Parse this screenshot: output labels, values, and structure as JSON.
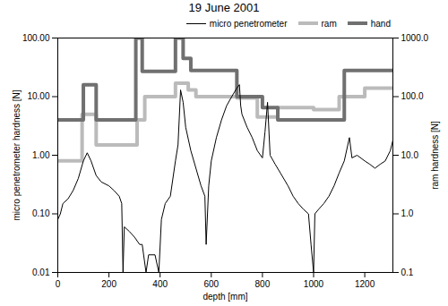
{
  "chart_data": {
    "type": "line",
    "title": "19 June 2001",
    "x_label": "depth [mm]",
    "y_label": "micro penetrometer hardness [N]",
    "y2_label": "ram hardness [N]",
    "log": true,
    "legend": "top right",
    "xlim": [
      0,
      1310
    ],
    "xticks": [
      0,
      200,
      400,
      600,
      800,
      1000,
      1200
    ],
    "ylim": [
      0.01,
      100
    ],
    "yticks": [
      {
        "value": 0.01,
        "label": "0.01"
      },
      {
        "value": 0.1,
        "label": "0.10"
      },
      {
        "value": 1,
        "label": "1.00"
      },
      {
        "value": 10,
        "label": "10.00"
      },
      {
        "value": 100,
        "label": "100.00"
      }
    ],
    "y2lim": [
      0.1,
      1000
    ],
    "y2ticks": [
      0.1,
      {
        "value": 1,
        "label": "1.0"
      },
      {
        "value": 10,
        "label": "10.0"
      },
      {
        "value": 100,
        "label": "100.0"
      },
      {
        "value": 1000,
        "label": "1000.0"
      }
    ],
    "series": [
      {
        "name": "micro penetrometer",
        "color": "#000000",
        "type": "line",
        "line_style": "solid",
        "x": [
          0,
          10,
          20,
          40,
          60,
          80,
          100,
          115,
          130,
          150,
          170,
          200,
          220,
          240,
          250,
          255,
          260,
          280,
          300,
          320,
          330,
          345,
          355,
          380,
          395,
          405,
          420,
          440,
          460,
          470,
          480,
          490,
          500,
          520,
          540,
          560,
          575,
          580,
          590,
          600,
          620,
          640,
          660,
          680,
          700,
          710,
          715,
          720,
          740,
          760,
          780,
          800,
          810,
          820,
          830,
          850,
          870,
          900,
          920,
          940,
          960,
          980,
          990,
          1000,
          1005,
          1020,
          1040,
          1060,
          1080,
          1100,
          1120,
          1140,
          1150,
          1170,
          1200,
          1220,
          1240,
          1260,
          1280,
          1300,
          1310
        ],
        "values": [
          0.08,
          0.1,
          0.15,
          0.18,
          0.25,
          0.4,
          0.8,
          1.1,
          0.8,
          0.45,
          0.35,
          0.3,
          0.25,
          0.2,
          0.15,
          0.01,
          0.06,
          0.05,
          0.04,
          0.03,
          0.03,
          0.01,
          0.02,
          0.02,
          0.01,
          0.08,
          0.15,
          0.2,
          0.8,
          1.5,
          13,
          8,
          3,
          1.2,
          0.6,
          0.3,
          0.2,
          0.03,
          0.3,
          0.8,
          2,
          4,
          7,
          10,
          14,
          16,
          7,
          5,
          3,
          2,
          1.2,
          0.9,
          2.5,
          8,
          1,
          0.7,
          0.5,
          0.3,
          0.2,
          0.15,
          0.12,
          0.1,
          0.03,
          0.01,
          0.1,
          0.12,
          0.15,
          0.2,
          0.3,
          0.5,
          0.8,
          2,
          0.9,
          1,
          0.8,
          0.7,
          0.6,
          0.7,
          0.8,
          1.2,
          1.8
        ]
      },
      {
        "name": "ram",
        "color": "#bbbbbb",
        "type": "step",
        "axis": "y2",
        "x": [
          0,
          95,
          150,
          310,
          340,
          460,
          510,
          540,
          700,
          780,
          860,
          1000,
          1100,
          1200,
          1310
        ],
        "values": [
          8,
          50,
          15,
          40,
          100,
          170,
          130,
          100,
          95,
          45,
          65,
          60,
          100,
          140,
          140
        ]
      },
      {
        "name": "hand",
        "color": "#707070",
        "type": "step",
        "axis": "y2",
        "x": [
          0,
          100,
          150,
          305,
          330,
          460,
          490,
          520,
          700,
          800,
          860,
          1120,
          1310
        ],
        "values": [
          40,
          160,
          40,
          1000,
          270,
          1000,
          450,
          280,
          100,
          65,
          40,
          280,
          280
        ]
      }
    ]
  }
}
